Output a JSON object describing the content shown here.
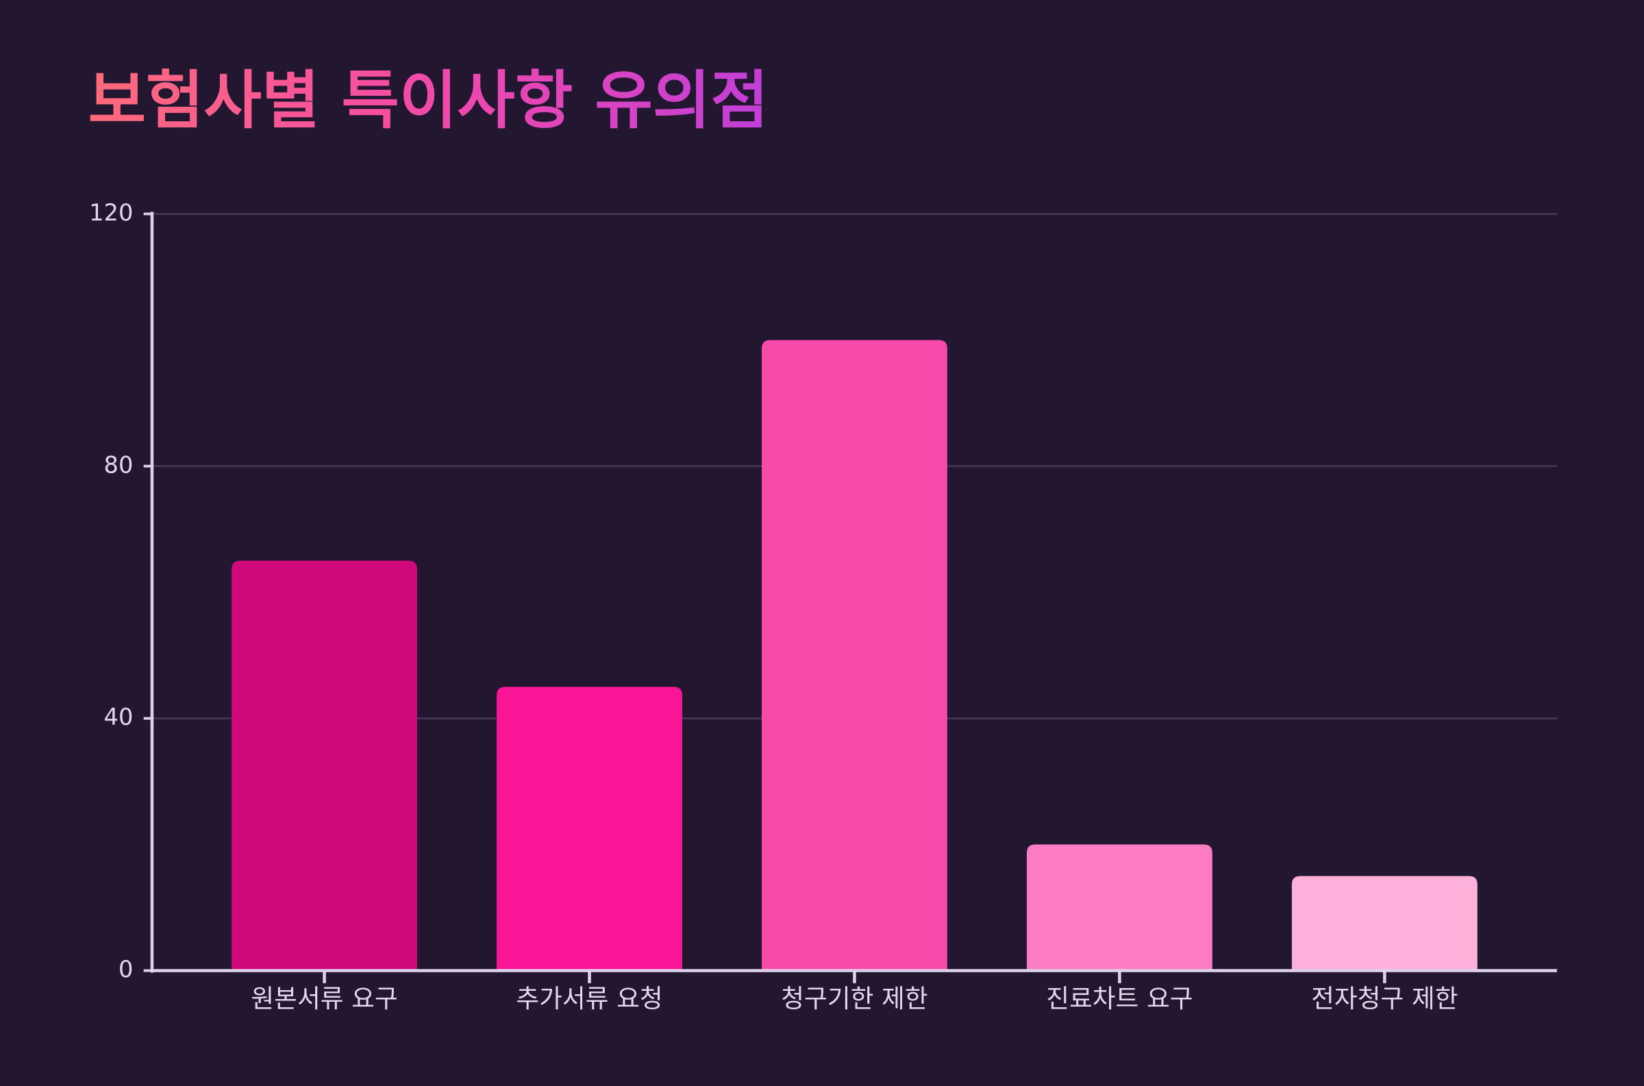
{
  "chart_data": {
    "type": "bar",
    "title": "보험사별 특이사항 유의점",
    "categories": [
      "원본서류 요구",
      "추가서류 요청",
      "청구기한 제한",
      "진료차트 요구",
      "전자청구 제한"
    ],
    "values": [
      65,
      45,
      100,
      20,
      15
    ],
    "colors": [
      "#d0097a",
      "#f91696",
      "#f74aab",
      "#fb7cc3",
      "#fdb1da"
    ],
    "ylim": [
      0,
      120
    ],
    "yticks": [
      0,
      40,
      80,
      120
    ],
    "grid": true
  }
}
